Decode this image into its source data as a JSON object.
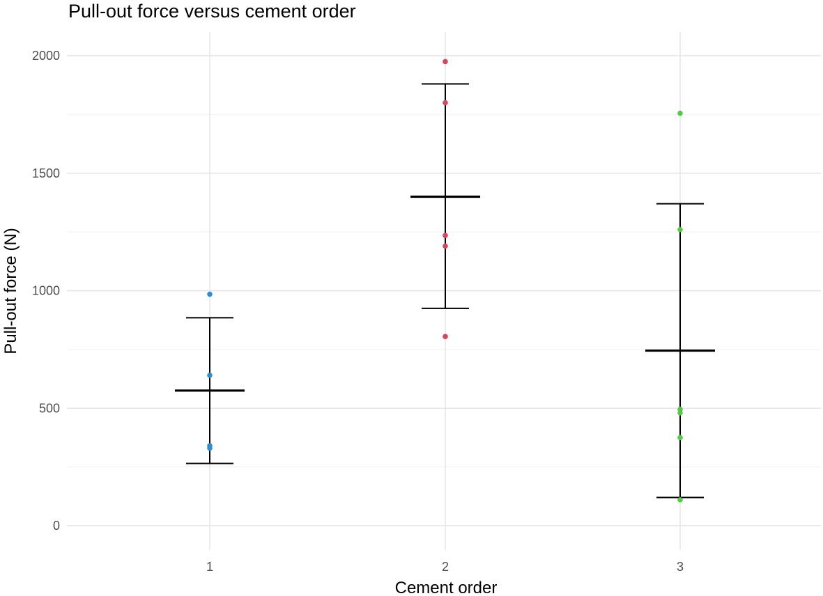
{
  "chart_data": {
    "type": "scatter",
    "title": "Pull-out force versus cement order",
    "xlabel": "Cement order",
    "ylabel": "Pull-out force (N)",
    "categories": [
      "1",
      "2",
      "3"
    ],
    "ylim": [
      -100,
      2100
    ],
    "y_ticks": [
      0,
      500,
      1000,
      1500,
      2000
    ],
    "y_tick_labels": [
      "0",
      "500",
      "1000",
      "1500",
      "2000"
    ],
    "grid": true,
    "legend": "none",
    "series": [
      {
        "category": "1",
        "color": "#2c8fd6",
        "points": [
          985,
          640,
          340,
          330
        ],
        "mean": 575,
        "error_low": 265,
        "error_high": 885
      },
      {
        "category": "2",
        "color": "#d9475f",
        "points": [
          1975,
          1800,
          1235,
          1190,
          805
        ],
        "mean": 1400,
        "error_low": 925,
        "error_high": 1880
      },
      {
        "category": "3",
        "color": "#59c74a",
        "points": [
          1755,
          1260,
          495,
          480,
          375,
          110
        ],
        "mean": 745,
        "error_low": 120,
        "error_high": 1370
      }
    ]
  }
}
